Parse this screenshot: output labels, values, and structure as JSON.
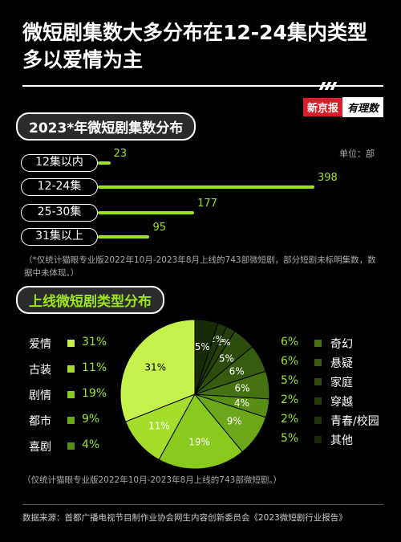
{
  "header": {
    "title": "微短剧集数大多分布在12-24集内类型多以爱情为主",
    "brand_box": "新京报",
    "brand_script": "有理数"
  },
  "section1": {
    "title": "2023*年微短剧集数分布",
    "unit": "单位：部",
    "note": "（*仅统计猫眼专业版2022年10月-2023年8月上线的743部微短剧，部分短剧未标明集数，数据中未体现。）"
  },
  "section2": {
    "title": "上线微短剧类型分布",
    "note": "（仅统计猫眼专业版2022年10月-2023年8月上线的743部微短剧。）"
  },
  "source": "数据来源：首都广播电视节目制作业协会网生内容创新委员会《2023微短剧行业报告》",
  "colors": {
    "accent": "#9be31f"
  },
  "chart_data": [
    {
      "type": "bar",
      "orientation": "horizontal",
      "title": "2023*年微短剧集数分布",
      "unit": "单位：部",
      "categories": [
        "12集以内",
        "12-24集",
        "25-30集",
        "31集以上"
      ],
      "values": [
        23,
        398,
        177,
        95
      ]
    },
    {
      "type": "pie",
      "title": "上线微短剧类型分布",
      "slices": [
        {
          "name": "爱情",
          "value": 31,
          "label": "31%",
          "color": "#c6f04c"
        },
        {
          "name": "古装",
          "value": 11,
          "label": "11%",
          "color": "#a6dd2a"
        },
        {
          "name": "剧情",
          "value": 19,
          "label": "19%",
          "color": "#8ac91e"
        },
        {
          "name": "都市",
          "value": 9,
          "label": "9%",
          "color": "#6da81a"
        },
        {
          "name": "喜剧",
          "value": 4,
          "label": "4%",
          "color": "#588e16"
        },
        {
          "name": "奇幻",
          "value": 6,
          "label": "6%",
          "color": "#467212"
        },
        {
          "name": "悬疑",
          "value": 6,
          "label": "6%",
          "color": "#385c0f"
        },
        {
          "name": "家庭",
          "value": 5,
          "label": "5%",
          "color": "#2e4c0c"
        },
        {
          "name": "穿越",
          "value": 2,
          "label": "2%",
          "color": "#263f0a"
        },
        {
          "name": "青春/校园",
          "value": 2,
          "label": "2%",
          "color": "#1f3408"
        },
        {
          "name": "其他",
          "value": 5,
          "label": "5%",
          "color": "#192a07"
        }
      ]
    }
  ]
}
